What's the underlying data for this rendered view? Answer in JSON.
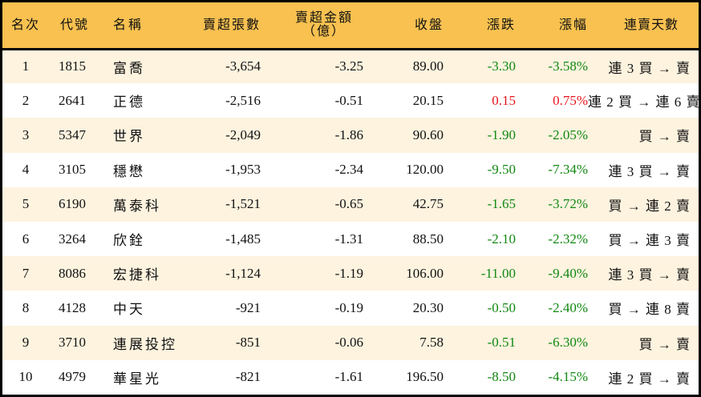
{
  "table": {
    "headers": {
      "rank": "名次",
      "code": "代號",
      "name": "名稱",
      "net_sell_lots": "賣超張數",
      "net_sell_amount_line1": "賣超金額",
      "net_sell_amount_line2": "（億）",
      "close": "收盤",
      "change": "漲跌",
      "change_pct": "漲幅",
      "streak": "連賣天數"
    },
    "colors": {
      "header_bg": "#F8C150",
      "row_alt_bg": "#FDF3DF",
      "row_bg": "#FFFFFF",
      "down": "#118811",
      "up": "#E8141C",
      "border": "#000000"
    },
    "rows": [
      {
        "rank": "1",
        "code": "1815",
        "name": "富喬",
        "net_sell_lots": "-3,654",
        "net_sell_amount": "-3.25",
        "close": "89.00",
        "change": "-3.30",
        "change_pct": "-3.58%",
        "direction": "down",
        "streak": "連 3 買 → 賣"
      },
      {
        "rank": "2",
        "code": "2641",
        "name": "正德",
        "net_sell_lots": "-2,516",
        "net_sell_amount": "-0.51",
        "close": "20.15",
        "change": "0.15",
        "change_pct": "0.75%",
        "direction": "up",
        "streak": "連 2 買 → 連 6 賣"
      },
      {
        "rank": "3",
        "code": "5347",
        "name": "世界",
        "net_sell_lots": "-2,049",
        "net_sell_amount": "-1.86",
        "close": "90.60",
        "change": "-1.90",
        "change_pct": "-2.05%",
        "direction": "down",
        "streak": "買 → 賣"
      },
      {
        "rank": "4",
        "code": "3105",
        "name": "穩懋",
        "net_sell_lots": "-1,953",
        "net_sell_amount": "-2.34",
        "close": "120.00",
        "change": "-9.50",
        "change_pct": "-7.34%",
        "direction": "down",
        "streak": "連 3 買 → 賣"
      },
      {
        "rank": "5",
        "code": "6190",
        "name": "萬泰科",
        "net_sell_lots": "-1,521",
        "net_sell_amount": "-0.65",
        "close": "42.75",
        "change": "-1.65",
        "change_pct": "-3.72%",
        "direction": "down",
        "streak": "買 → 連 2 賣"
      },
      {
        "rank": "6",
        "code": "3264",
        "name": "欣銓",
        "net_sell_lots": "-1,485",
        "net_sell_amount": "-1.31",
        "close": "88.50",
        "change": "-2.10",
        "change_pct": "-2.32%",
        "direction": "down",
        "streak": "買 → 連 3 賣"
      },
      {
        "rank": "7",
        "code": "8086",
        "name": "宏捷科",
        "net_sell_lots": "-1,124",
        "net_sell_amount": "-1.19",
        "close": "106.00",
        "change": "-11.00",
        "change_pct": "-9.40%",
        "direction": "down",
        "streak": "連 3 買 → 賣"
      },
      {
        "rank": "8",
        "code": "4128",
        "name": "中天",
        "net_sell_lots": "-921",
        "net_sell_amount": "-0.19",
        "close": "20.30",
        "change": "-0.50",
        "change_pct": "-2.40%",
        "direction": "down",
        "streak": "買 → 連 8 賣"
      },
      {
        "rank": "9",
        "code": "3710",
        "name": "連展投控",
        "net_sell_lots": "-851",
        "net_sell_amount": "-0.06",
        "close": "7.58",
        "change": "-0.51",
        "change_pct": "-6.30%",
        "direction": "down",
        "streak": "買 → 賣"
      },
      {
        "rank": "10",
        "code": "4979",
        "name": "華星光",
        "net_sell_lots": "-821",
        "net_sell_amount": "-1.61",
        "close": "196.50",
        "change": "-8.50",
        "change_pct": "-4.15%",
        "direction": "down",
        "streak": "連 2 買 → 賣"
      }
    ]
  }
}
